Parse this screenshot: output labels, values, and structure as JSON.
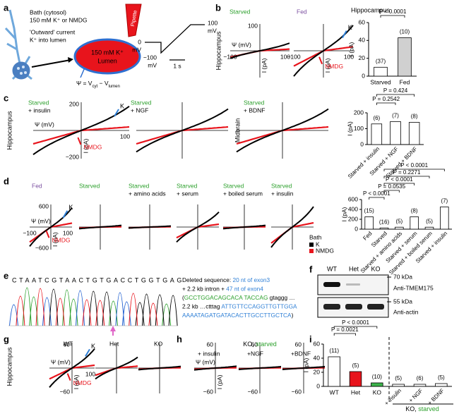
{
  "figure_labels": [
    "a",
    "b",
    "c",
    "d",
    "e",
    "f",
    "g",
    "h",
    "i"
  ],
  "panel_a": {
    "bath": "Bath (cytosol)",
    "bath_ions": "150 mM K⁺ or NMDG",
    "current": "'Outward' current",
    "current_dir": "K⁺ into lumen",
    "pipette": "Pipette",
    "lumen_ion": "150 mM K⁺",
    "lumen": "Lumen",
    "psi": [
      "Ψ = V",
      "cyt",
      " − V",
      "lumen"
    ],
    "protocol_high": "100",
    "protocol_high_unit": "mV",
    "protocol_zero": "0",
    "protocol_zero_unit": "mV",
    "protocol_low": "−100",
    "protocol_low_unit": "mV",
    "time": "1 s"
  },
  "row_labels": [
    "Hippocampus",
    "Hippocampus",
    "Midbrain",
    "Hippocampus"
  ],
  "iv_plots": [
    {
      "title": [
        "Starved"
      ],
      "title_colors": [
        "#2ca02c"
      ],
      "ymax": "100",
      "xmin": "−100",
      "xmax": "100",
      "xlabel": "Ψ (mV)",
      "ylabel": "I (pA)"
    },
    {
      "title": [
        "Fed"
      ],
      "title_colors": [
        "#7b4fa0"
      ],
      "xmin": "−100",
      "xmax": "100",
      "ylabel": "I (pA)",
      "k": "K",
      "nmdg": "NMDG"
    },
    {
      "title": [
        "Starved",
        "+ insulin"
      ],
      "title_colors": [
        "#2ca02c",
        "#000000"
      ],
      "ymax": "200",
      "ymin": "−200",
      "xlabel": "Ψ (mV)",
      "xmax": "100",
      "ylabel": "I (pA)",
      "k": "K",
      "nmdg": "NMDG"
    },
    {
      "title": [
        "Starved",
        "+ NGF"
      ],
      "title_colors": [
        "#2ca02c",
        "#000000"
      ]
    },
    {
      "title": [
        "Starved",
        "+ BDNF"
      ],
      "title_colors": [
        "#2ca02c",
        "#000000"
      ]
    },
    {
      "title": [
        "Fed"
      ],
      "title_colors": [
        "#7b4fa0"
      ],
      "ymax": "600",
      "ymin": "−600",
      "xlabel": "Ψ (mV)",
      "xmin": "−100",
      "xmax": "100",
      "ylabel": "I (pA)",
      "k": "K",
      "nmdg": "NMDG"
    },
    {
      "title": [
        "Starved"
      ],
      "title_colors": [
        "#2ca02c"
      ]
    },
    {
      "title": [
        "Starved",
        "+ amino acids"
      ],
      "title_colors": [
        "#2ca02c",
        "#000000"
      ]
    },
    {
      "title": [
        "Starved",
        "+ serum"
      ],
      "title_colors": [
        "#2ca02c",
        "#000000"
      ]
    },
    {
      "title": [
        "Starved",
        "+ boiled serum"
      ],
      "title_colors": [
        "#2ca02c",
        "#000000"
      ]
    },
    {
      "title": [
        "Starved",
        "+ insulin"
      ],
      "title_colors": [
        "#2ca02c",
        "#000000"
      ]
    },
    {
      "title": [
        "WT"
      ],
      "title_colors": [
        "#000000"
      ],
      "ymax": "60",
      "ymin": "−60",
      "xlabel": "Ψ (mV)",
      "xmax": "100",
      "ylabel": "I (pA)",
      "k": "K",
      "nmdg": "NMDG"
    },
    {
      "title": [
        "Het"
      ],
      "title_colors": [
        "#000000"
      ]
    },
    {
      "title": [
        "KO"
      ],
      "title_colors": [
        "#000000"
      ]
    },
    {
      "title": [
        "+ insulin"
      ],
      "title_colors": [
        "#000000"
      ],
      "ymax": "60",
      "ymin": "−60",
      "xlabel": "Ψ (mV)",
      "ylabel": "I (pA)"
    },
    {
      "title": [
        "+NGF"
      ],
      "title_colors": [
        "#000000"
      ],
      "ymax": "60",
      "ymin": "−60"
    },
    {
      "title": [
        "+BDNF"
      ],
      "title_colors": [
        "#000000"
      ],
      "ymax": "60",
      "ymin": "−60"
    }
  ],
  "legend_d": {
    "title": "Bath",
    "k": "K",
    "nmdg": "NMDG",
    "k_color": "#000000",
    "nmdg_color": "#e8141c"
  },
  "panel_e": {
    "sequence": "CTAATCGTAACTGTGACCTGGTGAG",
    "lines": [
      [
        "Deleted sequence: ",
        "20 nt of exon3"
      ],
      [
        "+ 2.2 kb intron + ",
        "47 nt of exon4"
      ],
      [
        "(",
        "GCCTGGACAGCACA TACCAG",
        " gtaggg …"
      ],
      [
        "2.2 kb …ctttag ",
        "ATTGTTCCAGGTTGTTGGA"
      ],
      [
        "AAAATAGATGATACACTTGCCTTGCTCA",
        ")"
      ]
    ]
  },
  "panel_f": {
    "lanes": [
      "WT",
      "Het",
      "KO"
    ],
    "marker_top": "70 kDa",
    "antibody_top": "Anti-TMEM175",
    "marker_bottom": "55 kDa",
    "antibody_bottom": "Anti-actin"
  },
  "panel_h": {
    "group": [
      "KO, ",
      "starved"
    ]
  },
  "chart_data": [
    {
      "type": "bar",
      "title": "Hippocampus",
      "ylabel": "I (pA)",
      "categories": [
        "Starved",
        "Fed"
      ],
      "values": [
        10,
        43
      ],
      "n_labels": [
        "(37)",
        "(10)"
      ],
      "colors": [
        "#ffffff",
        "#d0d0d0"
      ],
      "ylim": [
        0,
        60
      ],
      "yticks": [
        0,
        20,
        40,
        60
      ],
      "comparisons": [
        "P < 0.0001"
      ]
    },
    {
      "type": "bar",
      "ylabel": "I (pA)",
      "categories": [
        "Starved + insulin",
        "Starved + NGF",
        "Starved + BDNF"
      ],
      "values": [
        130,
        145,
        140
      ],
      "n_labels": [
        "(6)",
        "(7)",
        "(8)"
      ],
      "colors": [
        "#ffffff",
        "#ffffff",
        "#ffffff"
      ],
      "ylim": [
        0,
        200
      ],
      "yticks": [
        0,
        100,
        200
      ],
      "comparisons": [
        "P = 0.424",
        "P = 0.2542"
      ]
    },
    {
      "type": "bar",
      "ylabel": "I (pA)",
      "categories": [
        "Fed",
        "Starved",
        "Starved + amino acids",
        "Starved + serum",
        "Starved + boiled serum",
        "Starved + insulin"
      ],
      "values": [
        250,
        25,
        40,
        250,
        40,
        450
      ],
      "n_labels": [
        "(15)",
        "(16)",
        "(5)",
        "(8)",
        "(5)",
        "(7)"
      ],
      "colors": [
        "#ffffff",
        "#ffffff",
        "#ffffff",
        "#ffffff",
        "#ffffff",
        "#ffffff"
      ],
      "ylim": [
        0,
        600
      ],
      "yticks": [
        0,
        200,
        400,
        600
      ],
      "comparisons": [
        "P < 0.0001",
        "P = 0.2271",
        "P < 0.0001",
        "P = 0.0535",
        "P < 0.0001"
      ]
    },
    {
      "type": "bar",
      "ylabel": "I (pA)",
      "categories": [
        "WT",
        "Het",
        "KO",
        "+ insulin",
        "+ NGF",
        "+ BDNF"
      ],
      "values": [
        42,
        21,
        5,
        3,
        3,
        4
      ],
      "n_labels": [
        "(11)",
        "(5)",
        "(10)",
        "(5)",
        "(6)",
        "(5)"
      ],
      "colors": [
        "#ffffff",
        "#e8141c",
        "#3cb44b",
        "#ffffff",
        "#ffffff",
        "#ffffff"
      ],
      "ylim": [
        0,
        60
      ],
      "yticks": [
        0,
        20,
        40,
        60
      ],
      "comparisons": [
        "P < 0.0001",
        "P = 0.0021"
      ]
    }
  ]
}
